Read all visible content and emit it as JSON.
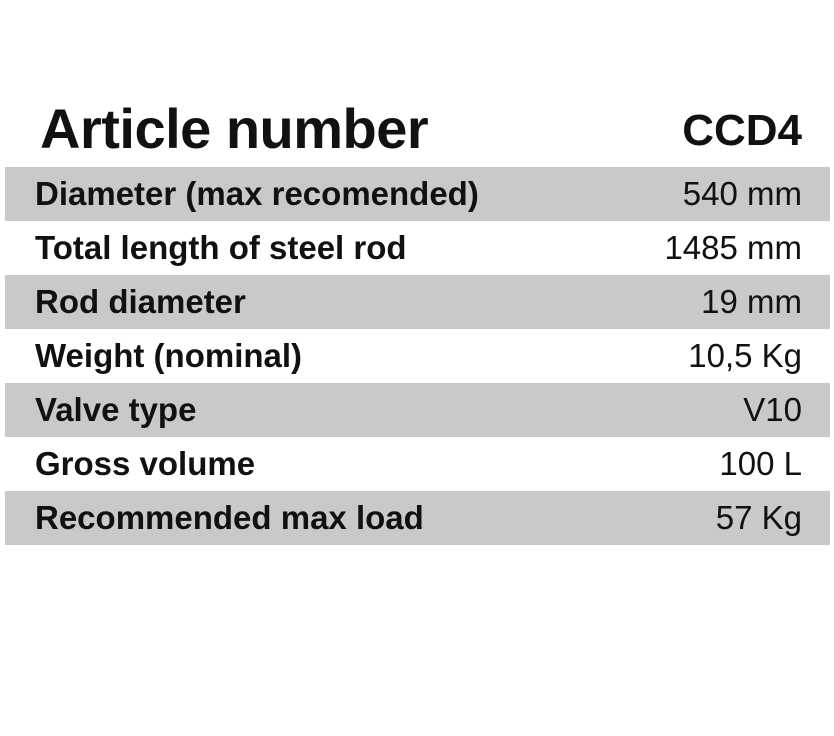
{
  "header": {
    "label": "Article number",
    "value": "CCD4"
  },
  "rows": [
    {
      "label": "Diameter (max recomended)",
      "value": "540 mm"
    },
    {
      "label": "Total length of steel rod",
      "value": "1485 mm"
    },
    {
      "label": "Rod diameter",
      "value": "19 mm"
    },
    {
      "label": "Weight (nominal)",
      "value": "10,5 Kg"
    },
    {
      "label": "Valve type",
      "value": "V10"
    },
    {
      "label": "Gross volume",
      "value": "100 L"
    },
    {
      "label": "Recommended max load",
      "value": "57 Kg"
    }
  ],
  "colors": {
    "shaded_row": "#c9c9c9",
    "text": "#111111"
  }
}
